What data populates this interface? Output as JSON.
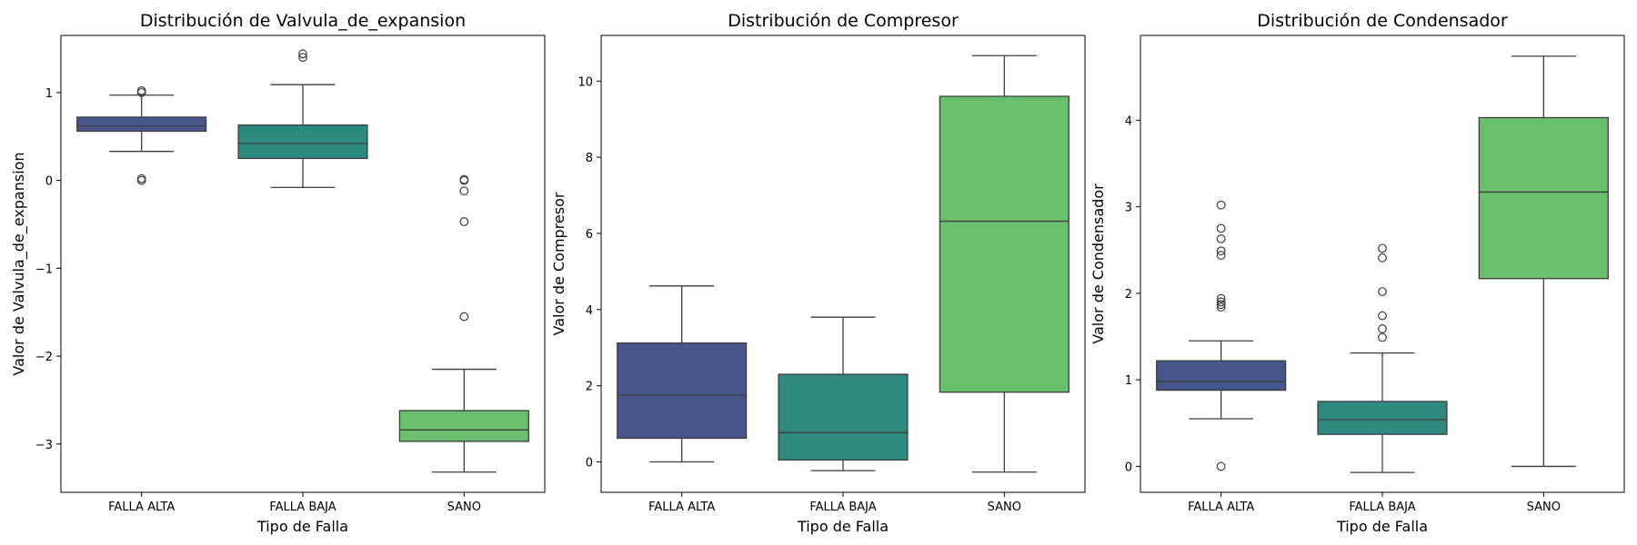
{
  "chart_data": [
    {
      "type": "box",
      "title": "Distribución de Valvula_de_expansion",
      "xlabel": "Tipo de Falla",
      "ylabel": "Valor de Valvula_de_expansion",
      "categories": [
        "FALLA ALTA",
        "FALLA BAJA",
        "SANO"
      ],
      "colors": [
        "#46558a",
        "#2e8a7e",
        "#6abf6c"
      ],
      "ylim": [
        -3.55,
        1.65
      ],
      "yticks": [
        -3,
        -2,
        -1,
        0,
        1
      ],
      "ytick_labels": [
        "−3",
        "−2",
        "−1",
        "0",
        "1"
      ],
      "boxes": [
        {
          "whislo": 0.33,
          "q1": 0.56,
          "med": 0.62,
          "q3": 0.72,
          "whishi": 0.97,
          "fliers": [
            0.0,
            0.02,
            1.0,
            1.02
          ]
        },
        {
          "whislo": -0.08,
          "q1": 0.25,
          "med": 0.42,
          "q3": 0.63,
          "whishi": 1.09,
          "fliers": [
            1.4,
            1.44
          ]
        },
        {
          "whislo": -3.32,
          "q1": -2.97,
          "med": -2.84,
          "q3": -2.62,
          "whishi": -2.15,
          "fliers": [
            0.0,
            0.01,
            -0.12,
            -0.47,
            -1.55
          ]
        }
      ]
    },
    {
      "type": "box",
      "title": "Distribución de Compresor",
      "xlabel": "Tipo de Falla",
      "ylabel": "Valor de Compresor",
      "categories": [
        "FALLA ALTA",
        "FALLA BAJA",
        "SANO"
      ],
      "colors": [
        "#46558a",
        "#2e8a7e",
        "#6abf6c"
      ],
      "ylim": [
        -0.8,
        11.2
      ],
      "yticks": [
        0,
        2,
        4,
        6,
        8,
        10
      ],
      "ytick_labels": [
        "0",
        "2",
        "4",
        "6",
        "8",
        "10"
      ],
      "boxes": [
        {
          "whislo": 0.0,
          "q1": 0.62,
          "med": 1.75,
          "q3": 3.12,
          "whishi": 4.62,
          "fliers": []
        },
        {
          "whislo": -0.23,
          "q1": 0.05,
          "med": 0.77,
          "q3": 2.3,
          "whishi": 3.8,
          "fliers": []
        },
        {
          "whislo": -0.27,
          "q1": 1.83,
          "med": 6.32,
          "q3": 9.6,
          "whishi": 10.67,
          "fliers": []
        }
      ]
    },
    {
      "type": "box",
      "title": "Distribución de Condensador",
      "xlabel": "Tipo de Falla",
      "ylabel": "Valor de Condensador",
      "categories": [
        "FALLA ALTA",
        "FALLA BAJA",
        "SANO"
      ],
      "colors": [
        "#46558a",
        "#2e8a7e",
        "#6abf6c"
      ],
      "ylim": [
        -0.3,
        4.98
      ],
      "yticks": [
        0,
        1,
        2,
        3,
        4
      ],
      "ytick_labels": [
        "0",
        "1",
        "2",
        "3",
        "4"
      ],
      "boxes": [
        {
          "whislo": 0.55,
          "q1": 0.88,
          "med": 0.98,
          "q3": 1.22,
          "whishi": 1.45,
          "fliers": [
            0.0,
            1.84,
            1.87,
            1.9,
            1.94,
            2.44,
            2.49,
            2.63,
            2.75,
            3.02
          ]
        },
        {
          "whislo": -0.07,
          "q1": 0.37,
          "med": 0.54,
          "q3": 0.75,
          "whishi": 1.31,
          "fliers": [
            1.49,
            1.59,
            1.74,
            2.02,
            2.41,
            2.52
          ]
        },
        {
          "whislo": 0.0,
          "q1": 2.17,
          "med": 3.17,
          "q3": 4.03,
          "whishi": 4.74,
          "fliers": []
        }
      ]
    }
  ]
}
